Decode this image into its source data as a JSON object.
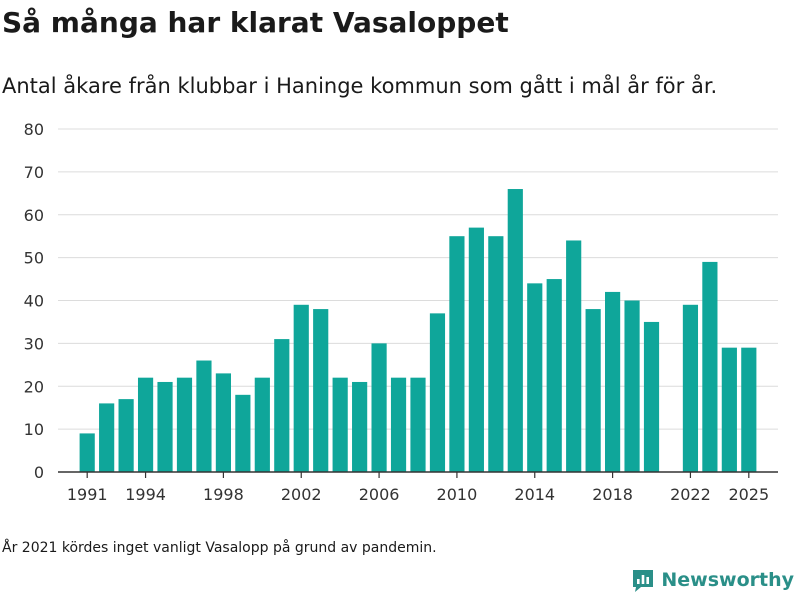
{
  "chart_data": {
    "type": "bar",
    "title": "Så många har klarat Vasaloppet",
    "subtitle": "Antal åkare från klubbar i Haninge kommun som gått i mål år för år.",
    "x": [
      1991,
      1992,
      1993,
      1994,
      1995,
      1996,
      1997,
      1998,
      1999,
      2000,
      2001,
      2002,
      2003,
      2004,
      2005,
      2006,
      2007,
      2008,
      2009,
      2010,
      2011,
      2012,
      2013,
      2014,
      2015,
      2016,
      2017,
      2018,
      2019,
      2020,
      2022,
      2023,
      2024,
      2025
    ],
    "values": [
      9,
      16,
      17,
      22,
      21,
      22,
      26,
      23,
      18,
      22,
      31,
      39,
      38,
      22,
      21,
      30,
      22,
      22,
      37,
      55,
      57,
      55,
      66,
      44,
      45,
      54,
      38,
      42,
      40,
      35,
      39,
      49,
      29,
      29
    ],
    "x_ticks": [
      1991,
      1994,
      1998,
      2002,
      2006,
      2010,
      2014,
      2018,
      2022,
      2025
    ],
    "y_ticks": [
      0,
      10,
      20,
      30,
      40,
      50,
      60,
      70,
      80
    ],
    "ylim": [
      0,
      80
    ],
    "xlim": [
      1989.5,
      2026.5
    ],
    "grid": true,
    "bar_color": "#0fa69a"
  },
  "footnote": "År 2021 kördes inget vanligt Vasalopp på grund av pandemin.",
  "brand": {
    "name": "Newsworthy",
    "color": "#2a8f88",
    "icon": "bar-chart-icon"
  }
}
